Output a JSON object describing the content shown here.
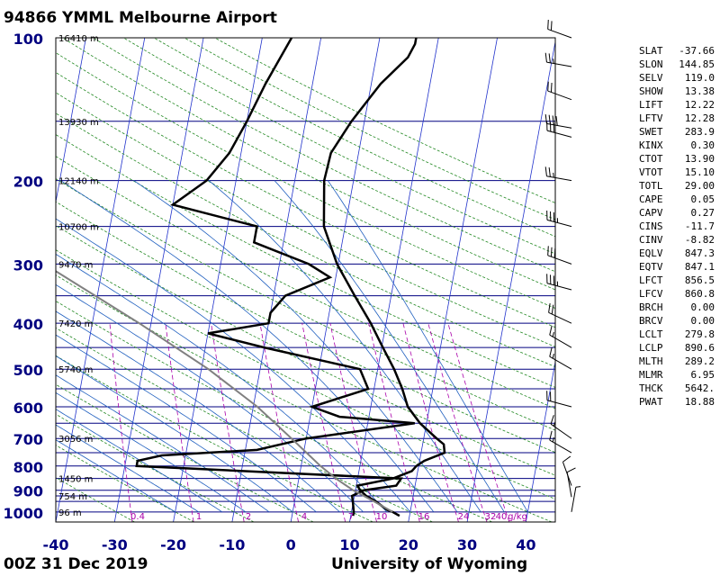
{
  "header": {
    "title": "94866 YMML Melbourne Airport"
  },
  "footer": {
    "time": "00Z 31 Dec 2019",
    "source": "University of Wyoming"
  },
  "chart_data": {
    "type": "line",
    "title": "94866 YMML Melbourne Airport",
    "x_axis": {
      "label": "",
      "ticks": [
        -40,
        -30,
        -20,
        -10,
        0,
        10,
        20,
        30,
        40
      ],
      "range": [
        -40,
        45
      ]
    },
    "y_axis": {
      "label": "",
      "scale": "log",
      "ticks": [
        100,
        200,
        300,
        400,
        500,
        600,
        700,
        800,
        900,
        1000
      ],
      "range": [
        100,
        1050
      ]
    },
    "height_labels": [
      {
        "p": 100,
        "text": "16410 m"
      },
      {
        "p": 150,
        "text": "13930 m"
      },
      {
        "p": 200,
        "text": "12140 m"
      },
      {
        "p": 250,
        "text": "10700 m"
      },
      {
        "p": 300,
        "text": "9470 m"
      },
      {
        "p": 400,
        "text": "7420 m"
      },
      {
        "p": 500,
        "text": "5740 m"
      },
      {
        "p": 700,
        "text": "3056 m"
      },
      {
        "p": 850,
        "text": "1450 m"
      },
      {
        "p": 925,
        "text": "754 m"
      },
      {
        "p": 1000,
        "text": "96 m"
      }
    ],
    "mixing_ratio_labels": [
      "0.4",
      "1",
      "2",
      "4",
      "7",
      "10",
      "16",
      "24",
      "32",
      "40",
      "g/kg"
    ],
    "series": [
      {
        "color": "#000000",
        "points": [
          [
            1019,
            18.3
          ],
          [
            1000,
            17.0
          ],
          [
            990,
            16.0
          ],
          [
            950,
            13.8
          ],
          [
            925,
            12.0
          ],
          [
            900,
            10.8
          ],
          [
            880,
            10.2
          ],
          [
            850,
            16.0
          ],
          [
            820,
            19.0
          ],
          [
            800,
            19.6
          ],
          [
            780,
            20.8
          ],
          [
            750,
            24.0
          ],
          [
            720,
            23.6
          ],
          [
            700,
            22.2
          ],
          [
            650,
            18.9
          ],
          [
            600,
            16.3
          ],
          [
            550,
            14.8
          ],
          [
            500,
            12.8
          ],
          [
            450,
            10.2
          ],
          [
            400,
            7.4
          ],
          [
            350,
            3.8
          ],
          [
            300,
            -0.2
          ],
          [
            250,
            -3.6
          ],
          [
            200,
            -5.0
          ],
          [
            175,
            -4.7
          ],
          [
            150,
            -2.2
          ],
          [
            125,
            1.6
          ],
          [
            110,
            5.4
          ],
          [
            103,
            6.2
          ],
          [
            100,
            6.2
          ]
        ]
      },
      {
        "color": "#000000",
        "points": [
          [
            1019,
            10.4
          ],
          [
            1000,
            10.4
          ],
          [
            950,
            9.9
          ],
          [
            925,
            9.6
          ],
          [
            900,
            11.4
          ],
          [
            880,
            16.8
          ],
          [
            850,
            17.4
          ],
          [
            800,
            -28.0
          ],
          [
            780,
            -28.0
          ],
          [
            760,
            -24.0
          ],
          [
            740,
            -8.0
          ],
          [
            700,
            0.0
          ],
          [
            650,
            18.0
          ],
          [
            630,
            5.0
          ],
          [
            600,
            0.0
          ],
          [
            550,
            9.0
          ],
          [
            500,
            7.0
          ],
          [
            450,
            -10.0
          ],
          [
            420,
            -20.0
          ],
          [
            400,
            -10.0
          ],
          [
            380,
            -10.0
          ],
          [
            350,
            -8.0
          ],
          [
            320,
            -1.0
          ],
          [
            300,
            -5.0
          ],
          [
            270,
            -15.0
          ],
          [
            250,
            -15.0
          ],
          [
            225,
            -30.0
          ],
          [
            200,
            -25.0
          ],
          [
            175,
            -22.0
          ],
          [
            150,
            -20.0
          ],
          [
            125,
            -18.0
          ],
          [
            100,
            -15.0
          ]
        ]
      },
      {
        "color": "#808080",
        "points": [
          [
            1000,
            17.0
          ],
          [
            950,
            13.5
          ],
          [
            900,
            9.6
          ],
          [
            850,
            6.3
          ],
          [
            800,
            3.3
          ],
          [
            700,
            -2.5
          ],
          [
            600,
            -9.3
          ],
          [
            500,
            -18.8
          ],
          [
            400,
            -32.0
          ],
          [
            300,
            -50.0
          ],
          [
            250,
            -61.0
          ],
          [
            200,
            -72.0
          ],
          [
            150,
            -85.0
          ],
          [
            100,
            -103.0
          ]
        ]
      }
    ],
    "wind_barbs": [
      {
        "p": 100,
        "dir": 290,
        "kt": 20
      },
      {
        "p": 115,
        "dir": 280,
        "kt": 25
      },
      {
        "p": 135,
        "dir": 290,
        "kt": 20
      },
      {
        "p": 155,
        "dir": 280,
        "kt": 40
      },
      {
        "p": 162,
        "dir": 285,
        "kt": 30
      },
      {
        "p": 200,
        "dir": 280,
        "kt": 25
      },
      {
        "p": 250,
        "dir": 285,
        "kt": 35
      },
      {
        "p": 300,
        "dir": 290,
        "kt": 30
      },
      {
        "p": 340,
        "dir": 285,
        "kt": 35
      },
      {
        "p": 400,
        "dir": 295,
        "kt": 20
      },
      {
        "p": 450,
        "dir": 300,
        "kt": 15
      },
      {
        "p": 500,
        "dir": 300,
        "kt": 15
      },
      {
        "p": 600,
        "dir": 285,
        "kt": 20
      },
      {
        "p": 700,
        "dir": 305,
        "kt": 15
      },
      {
        "p": 750,
        "dir": 300,
        "kt": 15
      },
      {
        "p": 880,
        "dir": 340,
        "kt": 10
      },
      {
        "p": 930,
        "dir": 350,
        "kt": 10
      },
      {
        "p": 1000,
        "dir": 10,
        "kt": 5
      }
    ]
  },
  "indices": [
    {
      "k": "SLAT",
      "v": "-37.66"
    },
    {
      "k": "SLON",
      "v": "144.85"
    },
    {
      "k": "SELV",
      "v": "119.0"
    },
    {
      "k": "SHOW",
      "v": "13.38"
    },
    {
      "k": "LIFT",
      "v": "12.22"
    },
    {
      "k": "LFTV",
      "v": "12.28"
    },
    {
      "k": "SWET",
      "v": "283.9"
    },
    {
      "k": "KINX",
      "v": "0.30"
    },
    {
      "k": "CTOT",
      "v": "13.90"
    },
    {
      "k": "VTOT",
      "v": "15.10"
    },
    {
      "k": "TOTL",
      "v": "29.00"
    },
    {
      "k": "CAPE",
      "v": "0.05"
    },
    {
      "k": "CAPV",
      "v": "0.27"
    },
    {
      "k": "CINS",
      "v": "-11.7"
    },
    {
      "k": "CINV",
      "v": "-8.82"
    },
    {
      "k": "EQLV",
      "v": "847.3"
    },
    {
      "k": "EQTV",
      "v": "847.1"
    },
    {
      "k": "LFCT",
      "v": "856.5"
    },
    {
      "k": "LFCV",
      "v": "860.8"
    },
    {
      "k": "BRCH",
      "v": "0.00"
    },
    {
      "k": "BRCV",
      "v": "0.00"
    },
    {
      "k": "LCLT",
      "v": "279.8"
    },
    {
      "k": "LCLP",
      "v": "890.6"
    },
    {
      "k": "MLTH",
      "v": "289.2"
    },
    {
      "k": "MLMR",
      "v": "6.95"
    },
    {
      "k": "THCK",
      "v": "5642."
    },
    {
      "k": "PWAT",
      "v": "18.88"
    }
  ],
  "colors": {
    "isobar": "#000080",
    "skewed_isotherm": "#2233cc",
    "dry_adiabat": "#228822",
    "moist_adiabat": "#1f5fbf",
    "mixing_ratio": "#aa00aa",
    "axis_label": "#000080"
  }
}
